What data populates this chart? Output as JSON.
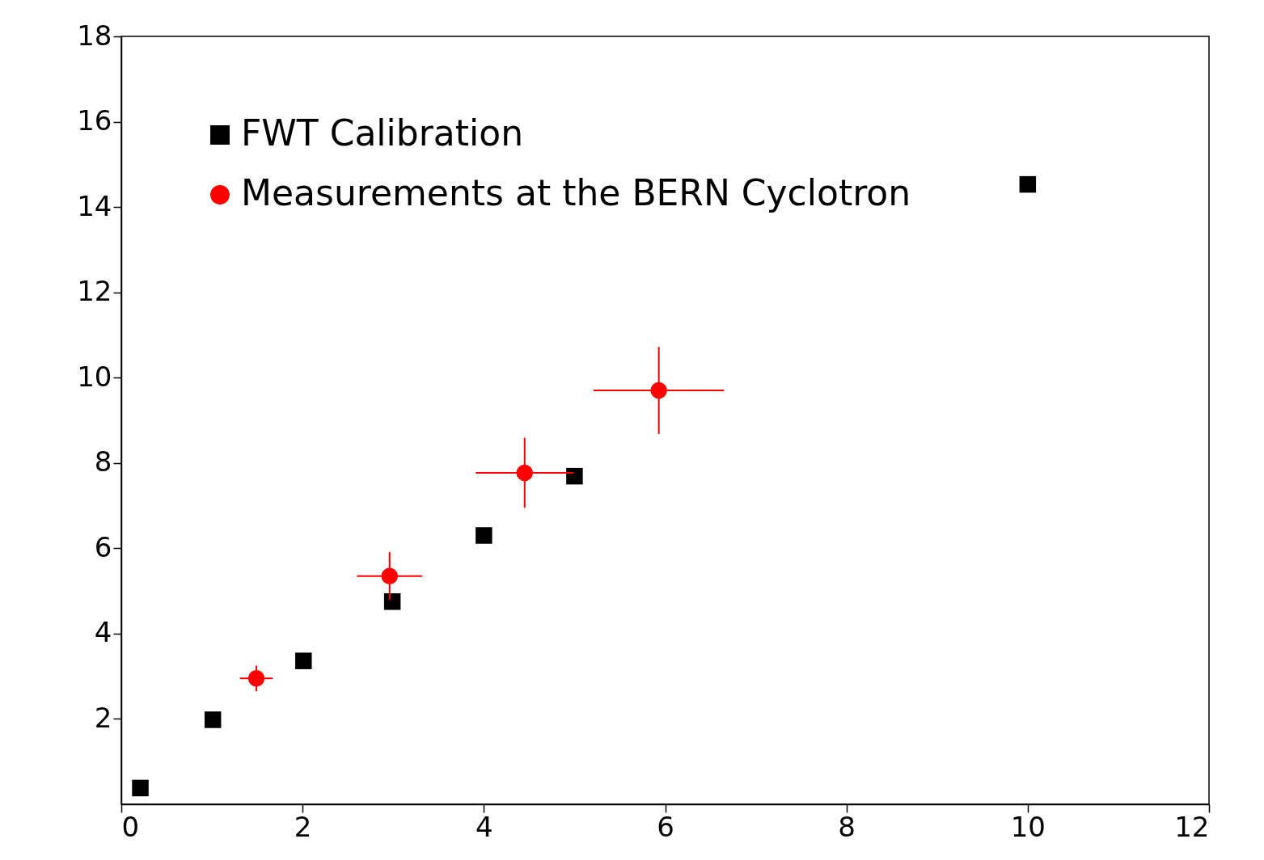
{
  "chart_data": {
    "type": "scatter",
    "xlim": [
      0,
      12
    ],
    "ylim": [
      0,
      18
    ],
    "xticks": [
      0,
      2,
      4,
      6,
      8,
      10,
      12
    ],
    "yticks": [
      2,
      4,
      6,
      8,
      10,
      12,
      14,
      16,
      18
    ],
    "legend": "top left",
    "grid": false,
    "series": [
      {
        "name": "FWT Calibration",
        "color": "#000000",
        "marker": "square",
        "x": [
          0.21,
          1.01,
          2.01,
          2.99,
          4.0,
          5.0,
          10.0
        ],
        "values": [
          0.38,
          1.98,
          3.36,
          4.75,
          6.3,
          7.69,
          14.53
        ]
      },
      {
        "name": "Measurements at the BERN Cyclotron",
        "color": "#ff0000",
        "marker": "circle",
        "x": [
          1.49,
          2.96,
          4.45,
          5.93
        ],
        "values": [
          2.95,
          5.35,
          7.77,
          9.7
        ],
        "errors": [
          0.3,
          0.56,
          0.82,
          1.02
        ],
        "xerrors": [
          0.18,
          0.36,
          0.54,
          0.72
        ]
      }
    ]
  }
}
